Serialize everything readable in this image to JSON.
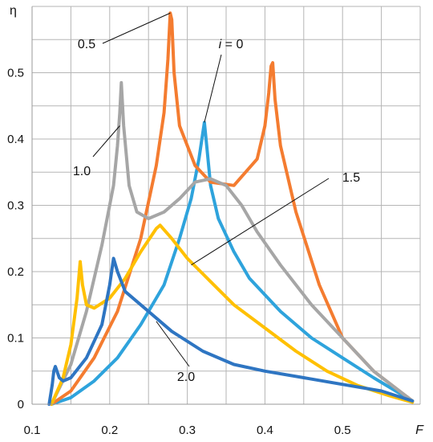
{
  "chart_data": {
    "type": "line",
    "xlabel": "F",
    "ylabel": "η",
    "xlim": [
      0.1,
      0.6
    ],
    "ylim": [
      0,
      0.6
    ],
    "xticks": [
      "0.1",
      "0.2",
      "0.3",
      "0.4",
      "0.5"
    ],
    "yticks": [
      "0",
      "0.1",
      "0.2",
      "0.3",
      "0.4",
      "0.5"
    ],
    "grid": true,
    "legend": "none",
    "series": [
      {
        "name": "i = 0",
        "color": "#2ea3dc",
        "x": [
          0.125,
          0.15,
          0.18,
          0.21,
          0.24,
          0.27,
          0.29,
          0.305,
          0.315,
          0.32,
          0.322,
          0.325,
          0.33,
          0.34,
          0.36,
          0.38,
          0.42,
          0.46,
          0.5,
          0.54,
          0.59
        ],
        "y": [
          0,
          0.01,
          0.035,
          0.07,
          0.12,
          0.18,
          0.25,
          0.31,
          0.37,
          0.41,
          0.425,
          0.39,
          0.33,
          0.28,
          0.23,
          0.19,
          0.14,
          0.1,
          0.07,
          0.04,
          0.005
        ]
      },
      {
        "name": "0.5",
        "color": "#f47c30",
        "x": [
          0.125,
          0.15,
          0.18,
          0.21,
          0.24,
          0.26,
          0.27,
          0.275,
          0.278,
          0.28,
          0.283,
          0.29,
          0.31,
          0.33,
          0.36,
          0.39,
          0.4,
          0.405,
          0.408,
          0.41,
          0.413,
          0.42,
          0.44,
          0.47,
          0.5,
          0.54,
          0.59
        ],
        "y": [
          0,
          0.02,
          0.07,
          0.14,
          0.25,
          0.36,
          0.44,
          0.52,
          0.59,
          0.58,
          0.5,
          0.42,
          0.36,
          0.335,
          0.33,
          0.37,
          0.42,
          0.47,
          0.51,
          0.515,
          0.46,
          0.39,
          0.29,
          0.18,
          0.1,
          0.05,
          0.005
        ]
      },
      {
        "name": "1.0",
        "color": "#a6a6a6",
        "x": [
          0.125,
          0.15,
          0.17,
          0.19,
          0.205,
          0.21,
          0.213,
          0.215,
          0.218,
          0.225,
          0.235,
          0.25,
          0.27,
          0.29,
          0.31,
          0.33,
          0.35,
          0.37,
          0.39,
          0.42,
          0.46,
          0.5,
          0.54,
          0.59
        ],
        "y": [
          0,
          0.06,
          0.14,
          0.24,
          0.33,
          0.39,
          0.44,
          0.485,
          0.42,
          0.33,
          0.29,
          0.28,
          0.29,
          0.31,
          0.335,
          0.34,
          0.33,
          0.3,
          0.26,
          0.21,
          0.15,
          0.1,
          0.05,
          0.005
        ]
      },
      {
        "name": "1.5",
        "color": "#ffc000",
        "x": [
          0.125,
          0.14,
          0.15,
          0.158,
          0.162,
          0.165,
          0.17,
          0.18,
          0.2,
          0.22,
          0.24,
          0.26,
          0.265,
          0.28,
          0.3,
          0.33,
          0.36,
          0.4,
          0.44,
          0.48,
          0.52,
          0.56,
          0.59
        ],
        "y": [
          0,
          0.04,
          0.09,
          0.16,
          0.215,
          0.18,
          0.15,
          0.145,
          0.16,
          0.19,
          0.23,
          0.265,
          0.27,
          0.25,
          0.22,
          0.185,
          0.15,
          0.115,
          0.08,
          0.05,
          0.028,
          0.013,
          0.003
        ]
      },
      {
        "name": "2.0",
        "color": "#2e75c2",
        "x": [
          0.122,
          0.126,
          0.128,
          0.13,
          0.135,
          0.14,
          0.15,
          0.17,
          0.19,
          0.2,
          0.205,
          0.21,
          0.22,
          0.25,
          0.28,
          0.32,
          0.36,
          0.4,
          0.45,
          0.5,
          0.55,
          0.59
        ],
        "y": [
          0,
          0.03,
          0.05,
          0.057,
          0.04,
          0.035,
          0.04,
          0.07,
          0.12,
          0.18,
          0.22,
          0.2,
          0.17,
          0.14,
          0.11,
          0.08,
          0.06,
          0.05,
          0.04,
          0.03,
          0.02,
          0.005
        ]
      }
    ],
    "annotations": [
      {
        "text": "0.5",
        "series": "0.5",
        "px": 0.278,
        "py": 0.59
      },
      {
        "text": "i = 0",
        "series": "i = 0",
        "px": 0.322,
        "py": 0.425
      },
      {
        "text": "1.0",
        "series": "1.0",
        "px": 0.213,
        "py": 0.42
      },
      {
        "text": "1.5",
        "series": "1.5",
        "px": 0.305,
        "py": 0.21
      },
      {
        "text": "2.0",
        "series": "2.0",
        "px": 0.26,
        "py": 0.125
      }
    ]
  }
}
